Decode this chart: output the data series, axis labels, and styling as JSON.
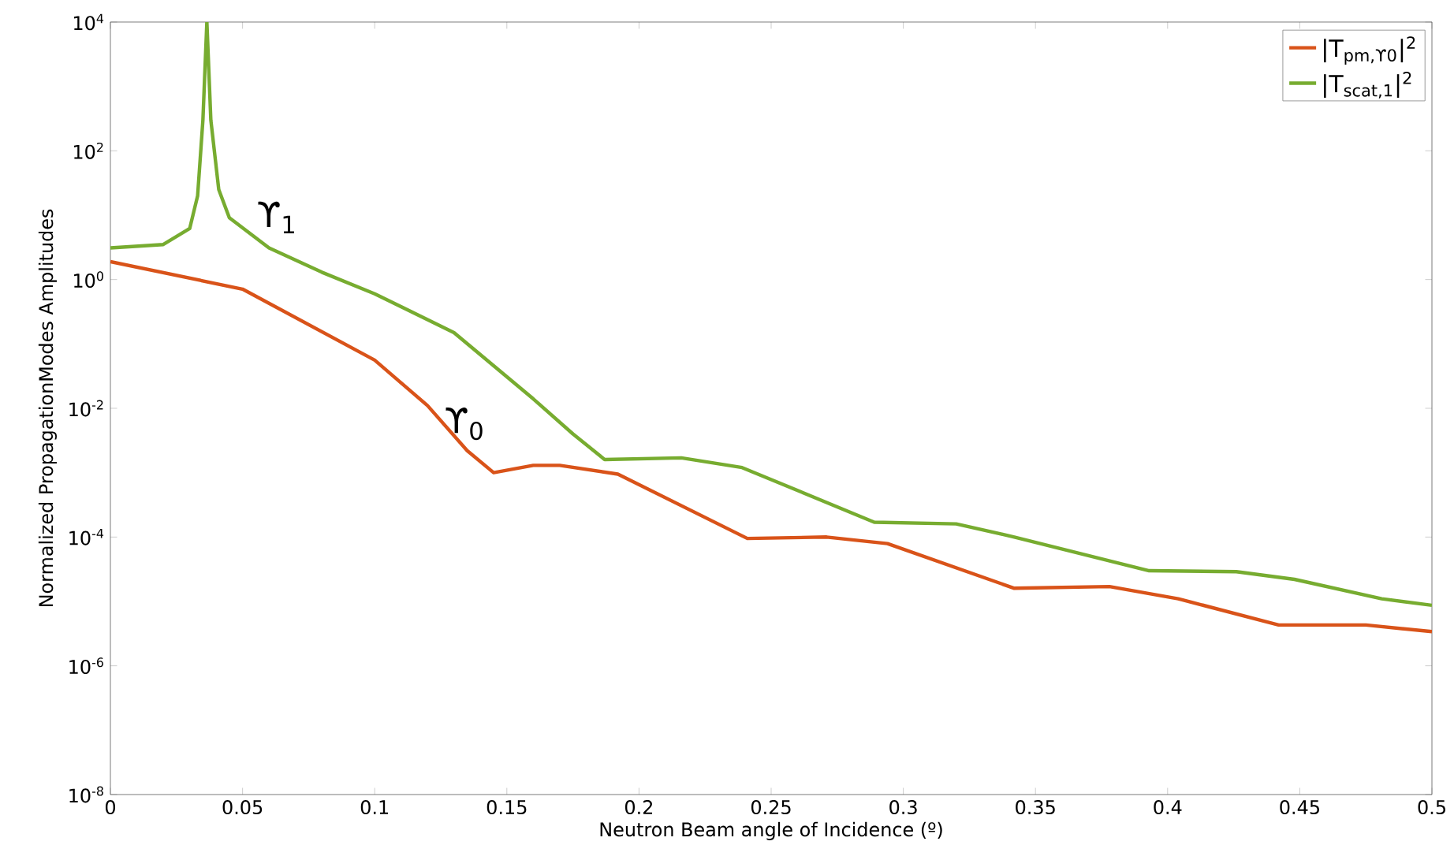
{
  "chart_data": {
    "type": "line",
    "xlabel": "Neutron Beam angle of Incidence (º)",
    "ylabel": "Normalized PropagationModes Amplitudes",
    "xlim": [
      0,
      0.5
    ],
    "ylim": [
      1e-08,
      10000
    ],
    "log": "y",
    "grid": false,
    "legend": "top right",
    "line_style": "solid",
    "marker": "none",
    "xticks": [
      0,
      0.05,
      0.1,
      0.15,
      0.2,
      0.25,
      0.3,
      0.35,
      0.4,
      0.45,
      0.5
    ],
    "yticks": [
      {
        "value": 1e-08,
        "label": "10$^{-8}$"
      },
      {
        "value": 1e-06,
        "label": "10$^{-6}$"
      },
      {
        "value": 0.0001,
        "label": "10$^{-4}$"
      },
      {
        "value": 0.01,
        "label": "10$^{-2}$"
      },
      {
        "value": 1,
        "label": "10$^{0}$"
      },
      {
        "value": 100,
        "label": "10$^{2}$"
      },
      {
        "value": 10000,
        "label": "10$^{4}$"
      }
    ],
    "series": [
      {
        "name": "|T$_{pm,ϒ0}$|$^{2}$",
        "color": "#d95319",
        "x": [
          0,
          0.05,
          0.1,
          0.12,
          0.135,
          0.145,
          0.16,
          0.17,
          0.192,
          0.241,
          0.271,
          0.294,
          0.342,
          0.378,
          0.404,
          0.442,
          0.475,
          0.5
        ],
        "values": [
          1.9,
          0.71,
          0.056,
          0.011,
          0.0022,
          0.001,
          0.0013,
          0.0013,
          0.00095,
          9.5e-05,
          0.0001,
          7.9e-05,
          1.6e-05,
          1.7e-05,
          1.1e-05,
          4.3e-06,
          4.3e-06,
          3.4e-06
        ]
      },
      {
        "name": "|T$_{scat,1}$|$^{2}$",
        "color": "#77ac30",
        "x": [
          0,
          0.02,
          0.03,
          0.033,
          0.035,
          0.0365,
          0.038,
          0.041,
          0.045,
          0.06,
          0.08,
          0.1,
          0.13,
          0.16,
          0.175,
          0.187,
          0.216,
          0.239,
          0.289,
          0.32,
          0.342,
          0.393,
          0.426,
          0.448,
          0.481,
          0.5
        ],
        "values": [
          3.1,
          3.5,
          6.2,
          20,
          300,
          10000,
          300,
          25,
          9.1,
          3.1,
          1.3,
          0.6,
          0.15,
          0.014,
          0.004,
          0.0016,
          0.0017,
          0.0012,
          0.00017,
          0.00016,
          0.0001,
          3e-05,
          2.9e-05,
          2.2e-05,
          1.1e-05,
          8.7e-06
        ]
      }
    ],
    "annotations": [
      "ϒ$_{1}$",
      "ϒ$_{0}$"
    ]
  }
}
